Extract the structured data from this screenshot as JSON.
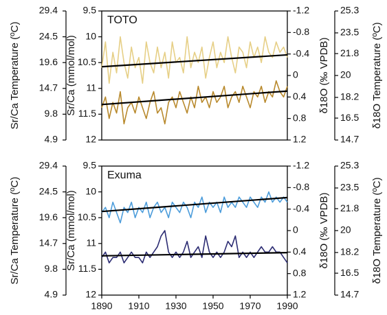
{
  "chart_data": [
    {
      "type": "line",
      "title": "TOTO",
      "x": [
        1890,
        1892,
        1894,
        1896,
        1898,
        1900,
        1902,
        1904,
        1906,
        1908,
        1910,
        1912,
        1914,
        1916,
        1918,
        1920,
        1922,
        1924,
        1926,
        1928,
        1930,
        1932,
        1934,
        1936,
        1938,
        1940,
        1942,
        1944,
        1946,
        1948,
        1950,
        1952,
        1954,
        1956,
        1958,
        1960,
        1962,
        1964,
        1966,
        1968,
        1970,
        1972,
        1974,
        1976,
        1978,
        1980,
        1982,
        1984,
        1986,
        1988,
        1990
      ],
      "xlim": [
        1890,
        1990
      ],
      "ylim": [
        12,
        9.5
      ],
      "yticks": [
        9.5,
        10,
        10.5,
        11,
        11.5,
        12
      ],
      "ylabel": "Sr/Ca (mmol/mol)",
      "y2lim": [
        1.2,
        -1.2
      ],
      "y2ticks": [
        -1.2,
        -0.8,
        -0.4,
        0,
        0.4,
        0.8,
        1.2
      ],
      "y2label": "δ18O (‰ VPDB)",
      "y3lim": [
        4.9,
        29.4
      ],
      "y3ticks": [
        29.4,
        24.5,
        19.6,
        14.7,
        9.8,
        4.9
      ],
      "y3label": "Sr/Ca Temperature (ºC)",
      "y4lim": [
        14.7,
        25.3
      ],
      "y4ticks": [
        25.3,
        23.5,
        21.8,
        20,
        18.2,
        16.5,
        14.7
      ],
      "y4label": "δ18O Temperature (ºC)",
      "series": [
        {
          "axis": "y",
          "color": "#e6cf86",
          "values": [
            10.6,
            10.1,
            10.9,
            10.3,
            10.7,
            10.0,
            10.5,
            10.8,
            10.2,
            10.6,
            10.4,
            10.9,
            10.1,
            10.5,
            10.7,
            10.2,
            10.6,
            10.3,
            10.8,
            10.1,
            10.5,
            10.4,
            10.7,
            10.0,
            10.6,
            10.3,
            10.5,
            10.2,
            10.8,
            10.4,
            10.1,
            10.6,
            10.3,
            10.5,
            10.0,
            10.4,
            10.7,
            10.2,
            10.3,
            10.6,
            10.1,
            10.4,
            10.2,
            10.5,
            10.0,
            10.3,
            10.4,
            10.1,
            10.3,
            10.2,
            10.4
          ]
        },
        {
          "axis": "y2",
          "color": "#b8892c",
          "values": [
            0.6,
            0.4,
            0.8,
            0.5,
            0.7,
            0.3,
            0.9,
            0.6,
            0.5,
            0.7,
            0.4,
            0.6,
            0.8,
            0.5,
            0.3,
            0.7,
            0.6,
            0.9,
            0.5,
            0.4,
            0.6,
            0.3,
            0.5,
            0.7,
            0.4,
            0.6,
            0.2,
            0.5,
            0.4,
            0.6,
            0.3,
            0.5,
            0.4,
            0.2,
            0.6,
            0.4,
            0.3,
            0.5,
            0.2,
            0.4,
            0.6,
            0.3,
            0.4,
            0.2,
            0.5,
            0.3,
            0.4,
            0.1,
            0.3,
            0.4,
            0.2
          ]
        }
      ],
      "trend_lines": [
        {
          "axis": "y",
          "color": "#000000",
          "x": [
            1890,
            1990
          ],
          "values": [
            10.58,
            10.35
          ]
        },
        {
          "axis": "y2",
          "color": "#000000",
          "x": [
            1890,
            1990
          ],
          "values": [
            0.54,
            0.29
          ]
        }
      ]
    },
    {
      "type": "line",
      "title": "Exuma",
      "x": [
        1890,
        1892,
        1894,
        1896,
        1898,
        1900,
        1902,
        1904,
        1906,
        1908,
        1910,
        1912,
        1914,
        1916,
        1918,
        1920,
        1922,
        1924,
        1926,
        1928,
        1930,
        1932,
        1934,
        1936,
        1938,
        1940,
        1942,
        1944,
        1946,
        1948,
        1950,
        1952,
        1954,
        1956,
        1958,
        1960,
        1962,
        1964,
        1966,
        1968,
        1970,
        1972,
        1974,
        1976,
        1978,
        1980,
        1982,
        1984,
        1986,
        1988,
        1990
      ],
      "xlim": [
        1890,
        1990
      ],
      "xticks": [
        1890,
        1910,
        1930,
        1950,
        1970,
        1990
      ],
      "ylim": [
        12,
        9.5
      ],
      "yticks": [
        9.5,
        10,
        10.5,
        11,
        11.5,
        12
      ],
      "ylabel": "Sr/Ca (mmol/mol)",
      "y2lim": [
        1.2,
        -1.2
      ],
      "y2ticks": [
        -1.2,
        -0.8,
        -0.4,
        0,
        0.4,
        0.8,
        1.2
      ],
      "y2label": "δ18O (‰ VPDB)",
      "y3lim": [
        4.9,
        29.4
      ],
      "y3ticks": [
        29.4,
        24.5,
        19.6,
        14.7,
        9.8,
        4.9
      ],
      "y3label": "Sr/Ca Temperature (ºC)",
      "y4lim": [
        14.7,
        25.3
      ],
      "y4ticks": [
        25.3,
        23.5,
        21.8,
        20,
        18.2,
        16.5,
        14.7
      ],
      "y4label": "δ18O Temperature (ºC)",
      "series": [
        {
          "axis": "y",
          "color": "#4d9ddb",
          "values": [
            10.4,
            10.3,
            10.5,
            10.2,
            10.4,
            10.6,
            10.3,
            10.4,
            10.2,
            10.5,
            10.3,
            10.4,
            10.2,
            10.5,
            10.3,
            10.2,
            10.4,
            10.3,
            10.5,
            10.2,
            10.3,
            10.4,
            10.2,
            10.3,
            10.5,
            10.2,
            10.3,
            10.1,
            10.4,
            10.2,
            10.3,
            10.2,
            10.4,
            10.1,
            10.3,
            10.2,
            10.3,
            10.1,
            10.2,
            10.3,
            10.1,
            10.2,
            10.3,
            10.1,
            10.2,
            10.0,
            10.2,
            10.1,
            10.2,
            10.1,
            10.2
          ]
        },
        {
          "axis": "y2",
          "color": "#2b2b72",
          "values": [
            0.5,
            0.4,
            0.6,
            0.5,
            0.5,
            0.4,
            0.6,
            0.5,
            0.4,
            0.5,
            0.5,
            0.6,
            0.4,
            0.5,
            0.4,
            0.3,
            0.1,
            0.0,
            0.4,
            0.5,
            0.4,
            0.5,
            0.4,
            0.2,
            0.5,
            0.4,
            0.3,
            0.5,
            0.1,
            0.4,
            0.5,
            0.4,
            0.5,
            0.4,
            0.2,
            0.3,
            0.1,
            0.5,
            0.4,
            0.5,
            0.4,
            0.5,
            0.4,
            0.3,
            0.4,
            0.4,
            0.3,
            0.4,
            0.4,
            0.5,
            0.6
          ]
        }
      ],
      "trend_lines": [
        {
          "axis": "y",
          "color": "#000000",
          "x": [
            1890,
            1990
          ],
          "values": [
            10.38,
            10.11
          ]
        },
        {
          "axis": "y2",
          "color": "#000000",
          "x": [
            1890,
            1990
          ],
          "values": [
            0.47,
            0.41
          ]
        }
      ]
    }
  ]
}
